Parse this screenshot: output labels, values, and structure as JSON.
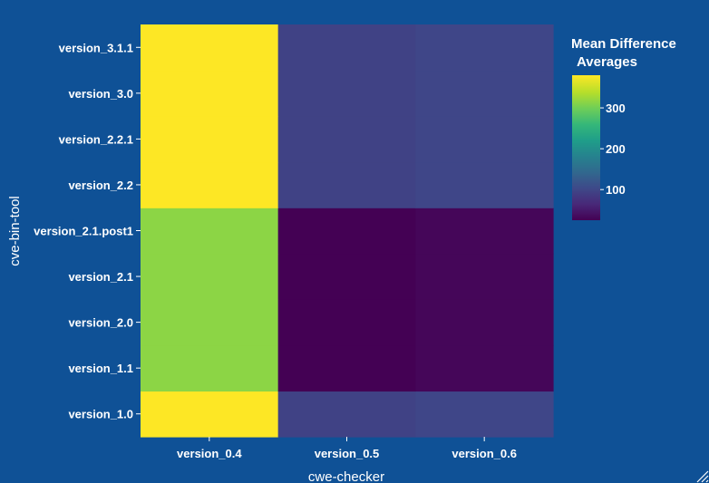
{
  "chart_data": {
    "type": "heatmap",
    "xlabel": "cwe-checker",
    "ylabel": "cve-bin-tool",
    "x_categories": [
      "version_0.4",
      "version_0.5",
      "version_0.6"
    ],
    "y_categories": [
      "version_1.0",
      "version_1.1",
      "version_2.0",
      "version_2.1",
      "version_2.1.post1",
      "version_2.2",
      "version_2.2.1",
      "version_3.0",
      "version_3.1.1"
    ],
    "z": [
      [
        380,
        95,
        100
      ],
      [
        315,
        25,
        30
      ],
      [
        315,
        25,
        30
      ],
      [
        315,
        25,
        30
      ],
      [
        315,
        25,
        30
      ],
      [
        380,
        95,
        100
      ],
      [
        380,
        95,
        100
      ],
      [
        380,
        95,
        100
      ],
      [
        380,
        95,
        100
      ]
    ],
    "zmin": 25,
    "zmax": 380,
    "colorscale": "viridis",
    "colorbar": {
      "title_lines": [
        "Mean Difference",
        "Averages"
      ],
      "tickvals": [
        100,
        200,
        300
      ]
    },
    "grid": false
  },
  "colors": {
    "background": "#0f5196",
    "text": "#ffffff",
    "axis_line": "#ffffff"
  }
}
